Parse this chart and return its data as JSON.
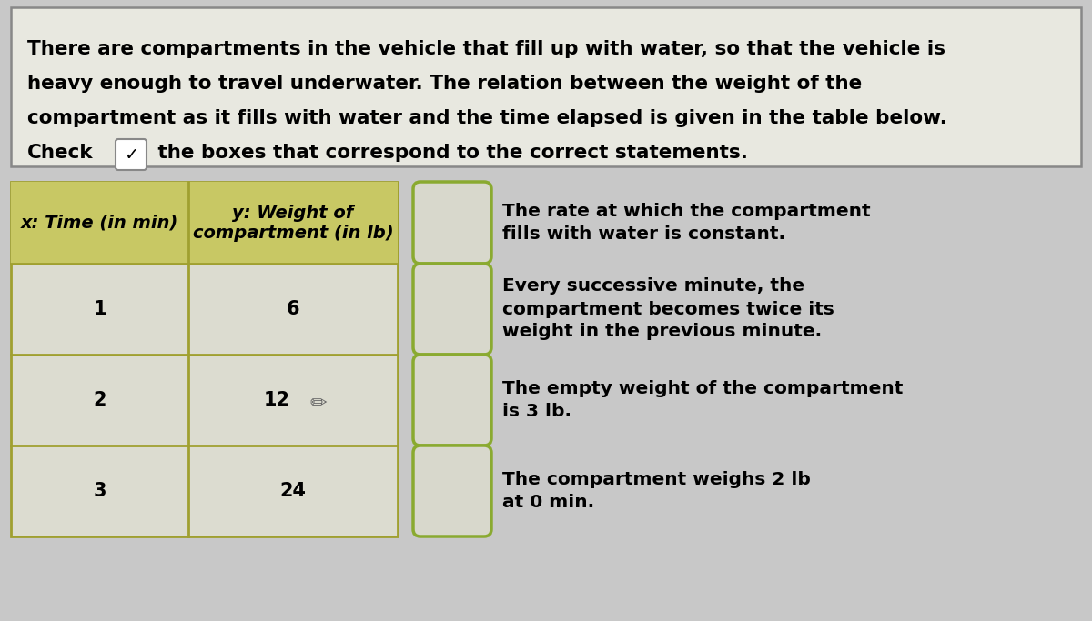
{
  "bg_color": "#c8c8c8",
  "instr_box_bg": "#e8e8e0",
  "instr_box_edge": "#888888",
  "instruction_lines": [
    "There are compartments in the vehicle that fill up with water, so that the vehicle is",
    "heavy enough to travel underwater. The relation between the weight of the",
    "compartment as it fills with water and the time elapsed is given in the table below.",
    "Check"
  ],
  "instr_last_suffix": " the boxes that correspond to the correct statements.",
  "table_header_col1": "x: Time (in min)",
  "table_header_col2": "y: Weight of\ncompartment (in lb)",
  "table_header_bg": "#c8c864",
  "table_header_edge": "#a0a030",
  "table_row_bg": "#dcdcd0",
  "table_edge": "#a0a030",
  "table_data": [
    [
      1,
      6
    ],
    [
      2,
      12
    ],
    [
      3,
      24
    ]
  ],
  "checkbox_edge": "#8aaa30",
  "checkbox_bg": "#d8d8cc",
  "statements": [
    "The rate at which the compartment\nfills with water is constant.",
    "Every successive minute, the\ncompartment becomes twice its\nweight in the previous minute.",
    "The empty weight of the compartment\nis 3 lb.",
    "The compartment weighs 2 lb\nat 0 min."
  ],
  "font_size_instr": 15.5,
  "font_size_table_hdr": 14,
  "font_size_table_data": 15,
  "font_size_stmt": 14.5
}
